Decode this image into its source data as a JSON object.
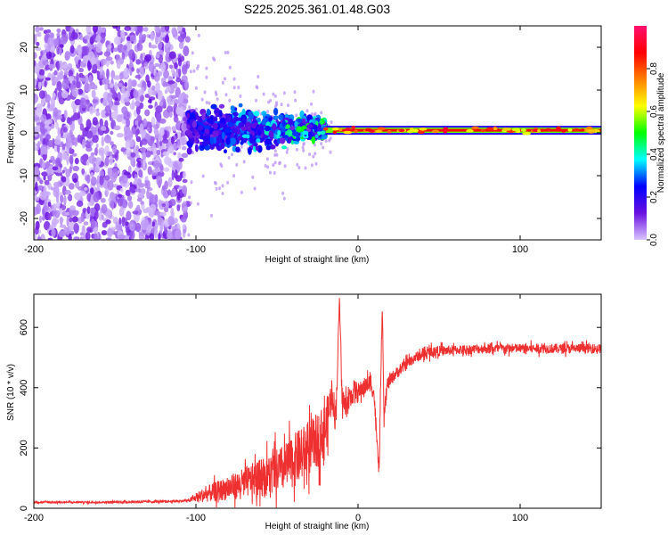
{
  "title": "S225.2025.361.01.48.G03",
  "colors": {
    "frame": "#000000",
    "snr_line": "#ee3030",
    "trace_pale": "#d9c4ff",
    "trace_deep": "#6a10e0"
  },
  "chart_data": [
    {
      "type": "heatmap",
      "name": "spectrogram",
      "xlabel": "Height of straight line (km)",
      "ylabel": "Frequency (Hz)",
      "xlim": [
        -200,
        150
      ],
      "ylim": [
        -25,
        25
      ],
      "xticks": [
        -200,
        -100,
        0,
        100
      ],
      "yticks": [
        -20,
        -10,
        0,
        10,
        20
      ],
      "ytick_labels": [
        "-20",
        "-10",
        "0",
        "10",
        "20"
      ],
      "tone_frequency_hz": 0.6,
      "colorbar": {
        "label": "Normalized spectral amplitude",
        "range": [
          0,
          1
        ],
        "ticks": [
          0.0,
          0.2,
          0.4,
          0.6,
          0.8
        ],
        "tick_labels": [
          "0.0",
          "0.2",
          "0.4",
          "0.6",
          "0.8"
        ],
        "colormap": [
          "#d9c4ff",
          "#6a10e0",
          "#0000ff",
          "#00ffff",
          "#00ff00",
          "#ffff00",
          "#ff8000",
          "#ff0000",
          "#ff1070"
        ]
      },
      "regions": [
        {
          "x_range": [
            -200,
            -105
          ],
          "freq_spread_hz": 25,
          "amplitude": "low",
          "description": "broadband noise"
        },
        {
          "x_range": [
            -105,
            -20
          ],
          "freq_spread_hz": 5,
          "amplitude": "medium"
        },
        {
          "x_range": [
            -20,
            150
          ],
          "freq_spread_hz": 1,
          "amplitude": "high",
          "description": "narrow tone"
        }
      ]
    },
    {
      "type": "line",
      "name": "snr",
      "xlabel": "Height of straight line (km)",
      "ylabel": "SNR (10 * v/v)",
      "xlim": [
        -200,
        150
      ],
      "ylim": [
        0,
        710
      ],
      "xticks": [
        -200,
        -100,
        0,
        100
      ],
      "yticks": [
        0,
        200,
        400,
        600
      ],
      "series": [
        {
          "name": "SNR",
          "x": [
            -200,
            -160,
            -120,
            -105,
            -95,
            -85,
            -75,
            -65,
            -55,
            -45,
            -38,
            -32,
            -27,
            -23,
            -20,
            -18,
            -16,
            -14,
            -13,
            -11.5,
            -10,
            -8,
            -5,
            -2,
            0,
            3,
            6,
            8,
            10,
            11.5,
            13,
            14,
            15,
            16,
            18,
            22,
            28,
            35,
            45,
            60,
            80,
            100,
            120,
            150
          ],
          "y": [
            20,
            20,
            22,
            25,
            45,
            60,
            75,
            95,
            110,
            135,
            165,
            190,
            215,
            240,
            265,
            320,
            390,
            300,
            410,
            700,
            380,
            335,
            365,
            395,
            380,
            400,
            410,
            420,
            370,
            230,
            115,
            430,
            660,
            300,
            410,
            440,
            470,
            500,
            520,
            525,
            530,
            530,
            530,
            530
          ],
          "noise": [
            3,
            3,
            4,
            4,
            25,
            35,
            45,
            55,
            70,
            80,
            90,
            90,
            90,
            90,
            90,
            70,
            60,
            50,
            40,
            8,
            45,
            45,
            40,
            35,
            35,
            30,
            30,
            30,
            30,
            20,
            20,
            25,
            10,
            25,
            25,
            20,
            20,
            18,
            18,
            16,
            16,
            16,
            16,
            16
          ]
        }
      ]
    }
  ]
}
